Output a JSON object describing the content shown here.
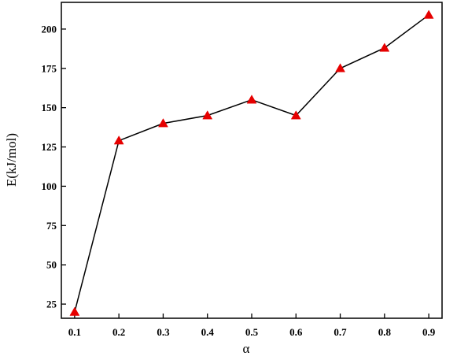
{
  "chart_data": {
    "type": "line",
    "xlabel": "α",
    "ylabel": "E(kJ/mol)",
    "x": [
      0.1,
      0.2,
      0.3,
      0.4,
      0.5,
      0.6,
      0.7,
      0.8,
      0.9
    ],
    "x_tick_labels": [
      "0.1",
      "0.2",
      "0.3",
      "0.4",
      "0.5",
      "0.6",
      "0.7",
      "0.8",
      "0.9"
    ],
    "y_ticks": [
      25,
      50,
      75,
      100,
      125,
      150,
      175,
      200
    ],
    "xlim": [
      0.07,
      0.93
    ],
    "ylim": [
      16,
      217
    ],
    "grid": false,
    "series": [
      {
        "values": [
          20,
          129,
          140,
          145,
          155,
          145,
          175,
          188,
          209
        ],
        "marker": "triangle",
        "line_color": "#000000",
        "marker_color": "#e60000"
      }
    ]
  }
}
